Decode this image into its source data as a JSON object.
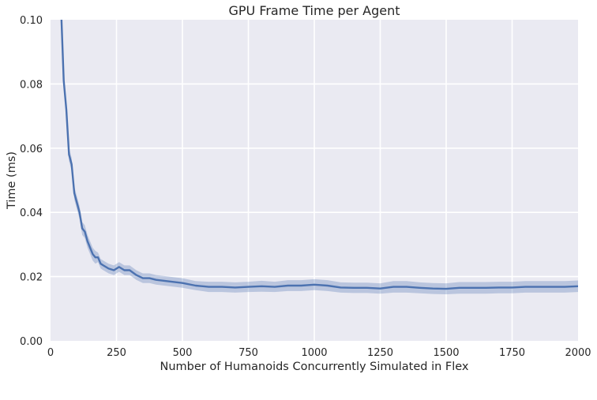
{
  "chart_data": {
    "type": "line",
    "title": "GPU Frame Time per Agent",
    "xlabel": "Number of Humanoids Concurrently Simulated in Flex",
    "ylabel": "Time (ms)",
    "xlim": [
      0,
      2000
    ],
    "ylim": [
      0,
      0.1
    ],
    "x_ticks": [
      0,
      250,
      500,
      750,
      1000,
      1250,
      1500,
      1750,
      2000
    ],
    "y_ticks": [
      0.0,
      0.02,
      0.04,
      0.06,
      0.08,
      0.1
    ],
    "x_tick_labels": [
      "0",
      "250",
      "500",
      "750",
      "1000",
      "1250",
      "1500",
      "1750",
      "2000"
    ],
    "y_tick_labels": [
      "0.00",
      "0.02",
      "0.04",
      "0.06",
      "0.08",
      "0.10"
    ],
    "grid": true,
    "background": "#eaeaf2",
    "line_color": "#4c72b0",
    "band_color": "#4c72b0",
    "series": [
      {
        "x": [
          40,
          50,
          60,
          70,
          80,
          90,
          100,
          110,
          120,
          130,
          140,
          150,
          160,
          170,
          180,
          190,
          200,
          220,
          240,
          260,
          280,
          300,
          325,
          350,
          375,
          400,
          450,
          500,
          550,
          600,
          650,
          700,
          750,
          800,
          850,
          900,
          950,
          1000,
          1050,
          1100,
          1150,
          1200,
          1250,
          1300,
          1350,
          1400,
          1450,
          1500,
          1550,
          1600,
          1650,
          1700,
          1750,
          1800,
          1850,
          1900,
          1950,
          2000
        ],
        "y": [
          0.103,
          0.081,
          0.072,
          0.058,
          0.055,
          0.046,
          0.043,
          0.04,
          0.035,
          0.034,
          0.031,
          0.029,
          0.027,
          0.026,
          0.026,
          0.024,
          0.0235,
          0.0225,
          0.022,
          0.023,
          0.022,
          0.022,
          0.0205,
          0.0195,
          0.0195,
          0.019,
          0.0185,
          0.018,
          0.0172,
          0.0168,
          0.0168,
          0.0166,
          0.0168,
          0.017,
          0.0168,
          0.0172,
          0.0172,
          0.0175,
          0.0172,
          0.0166,
          0.0165,
          0.0165,
          0.0163,
          0.0168,
          0.0168,
          0.0165,
          0.0163,
          0.0162,
          0.0165,
          0.0165,
          0.0165,
          0.0166,
          0.0166,
          0.0168,
          0.0168,
          0.0168,
          0.0168,
          0.017
        ],
        "ci_lower": [
          0.1,
          0.079,
          0.07,
          0.056,
          0.053,
          0.044,
          0.041,
          0.038,
          0.033,
          0.032,
          0.029,
          0.027,
          0.025,
          0.024,
          0.0245,
          0.0225,
          0.022,
          0.021,
          0.0205,
          0.0215,
          0.0205,
          0.0205,
          0.019,
          0.018,
          0.018,
          0.0175,
          0.017,
          0.0165,
          0.0158,
          0.0152,
          0.0152,
          0.015,
          0.0152,
          0.0153,
          0.0152,
          0.0155,
          0.0155,
          0.0158,
          0.0155,
          0.015,
          0.0149,
          0.0149,
          0.0147,
          0.015,
          0.015,
          0.0148,
          0.0146,
          0.0145,
          0.0147,
          0.0147,
          0.0147,
          0.0148,
          0.0148,
          0.015,
          0.015,
          0.015,
          0.015,
          0.0152
        ],
        "ci_upper": [
          0.106,
          0.083,
          0.074,
          0.06,
          0.057,
          0.048,
          0.045,
          0.042,
          0.037,
          0.036,
          0.033,
          0.031,
          0.029,
          0.028,
          0.0275,
          0.0255,
          0.025,
          0.024,
          0.0235,
          0.0245,
          0.0235,
          0.0235,
          0.022,
          0.021,
          0.021,
          0.0205,
          0.02,
          0.0195,
          0.0186,
          0.0184,
          0.0184,
          0.0182,
          0.0184,
          0.0187,
          0.0184,
          0.0189,
          0.0189,
          0.0192,
          0.0189,
          0.0182,
          0.0181,
          0.0181,
          0.0179,
          0.0186,
          0.0186,
          0.0182,
          0.018,
          0.0179,
          0.0183,
          0.0183,
          0.0183,
          0.0184,
          0.0184,
          0.0186,
          0.0186,
          0.0186,
          0.0186,
          0.0188
        ]
      }
    ]
  }
}
